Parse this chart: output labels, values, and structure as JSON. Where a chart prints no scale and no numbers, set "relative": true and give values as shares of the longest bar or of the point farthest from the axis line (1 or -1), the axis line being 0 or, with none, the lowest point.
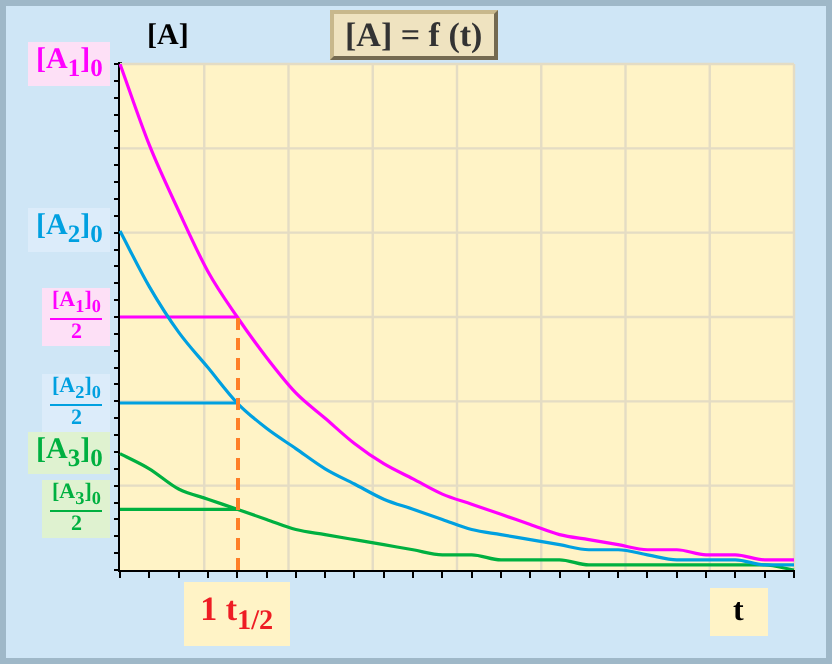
{
  "chart_data": {
    "type": "line",
    "title": "[A] = f (t)",
    "ylabel": "[A]",
    "xlabel": "t",
    "relative": true,
    "grid": true,
    "marker": "none",
    "categories": [
      null,
      null,
      null,
      null,
      null,
      null,
      null,
      null,
      null,
      null,
      null,
      null,
      null,
      null,
      null,
      null,
      null,
      null,
      null,
      null,
      null,
      null,
      null,
      null
    ],
    "series": [
      {
        "color": "#ff00ff",
        "values": [
          1,
          0.84,
          0.71,
          0.59,
          0.5,
          0.42,
          0.35,
          0.3,
          0.25,
          0.21,
          0.18,
          0.15,
          0.13,
          0.11,
          0.09,
          0.07,
          0.06,
          0.05,
          0.04,
          0.04,
          0.03,
          0.03,
          0.02,
          0.02
        ]
      },
      {
        "color": "#00a0e0",
        "values": [
          0.67,
          0.56,
          0.47,
          0.4,
          0.33,
          0.28,
          0.24,
          0.2,
          0.17,
          0.14,
          0.12,
          0.1,
          0.08,
          0.07,
          0.06,
          0.05,
          0.04,
          0.04,
          0.03,
          0.02,
          0.02,
          0.02,
          0.01,
          0.01
        ]
      },
      {
        "color": "#00b040",
        "values": [
          0.23,
          0.2,
          0.16,
          0.14,
          0.12,
          0.1,
          0.08,
          0.07,
          0.06,
          0.05,
          0.04,
          0.03,
          0.03,
          0.02,
          0.02,
          0.02,
          0.01,
          0.01,
          0.01,
          0.01,
          0.01,
          0.01,
          0.01,
          0
        ]
      },
      {
        "type": "line",
        "color": "#ff00ff",
        "values": [
          0.5,
          0.5,
          0.5,
          0.5,
          0.5,
          null,
          null,
          null,
          null,
          null,
          null,
          null,
          null,
          null,
          null,
          null,
          null,
          null,
          null,
          null,
          null,
          null,
          null,
          null
        ]
      },
      {
        "type": "line",
        "color": "#00a0e0",
        "values": [
          0.33,
          0.33,
          0.33,
          0.33,
          0.33,
          null,
          null,
          null,
          null,
          null,
          null,
          null,
          null,
          null,
          null,
          null,
          null,
          null,
          null,
          null,
          null,
          null,
          null,
          null
        ]
      },
      {
        "type": "line",
        "color": "#00b040",
        "values": [
          0.12,
          0.12,
          0.12,
          0.12,
          0.12,
          null,
          null,
          null,
          null,
          null,
          null,
          null,
          null,
          null,
          null,
          null,
          null,
          null,
          null,
          null,
          null,
          null,
          null,
          null
        ]
      }
    ],
    "annotations": [
      "[A$_{1}$]$_{0}$",
      "[A$_{1}$]$_{0}$\n2",
      "[A$_{2}$]$_{0}$",
      "[A$_{2}$]$_{0}$\n2",
      "[A$_{3}$]$_{0}$",
      "[A$_{3}$]$_{0}$\n2",
      "1 t$_{1/2}$"
    ]
  }
}
